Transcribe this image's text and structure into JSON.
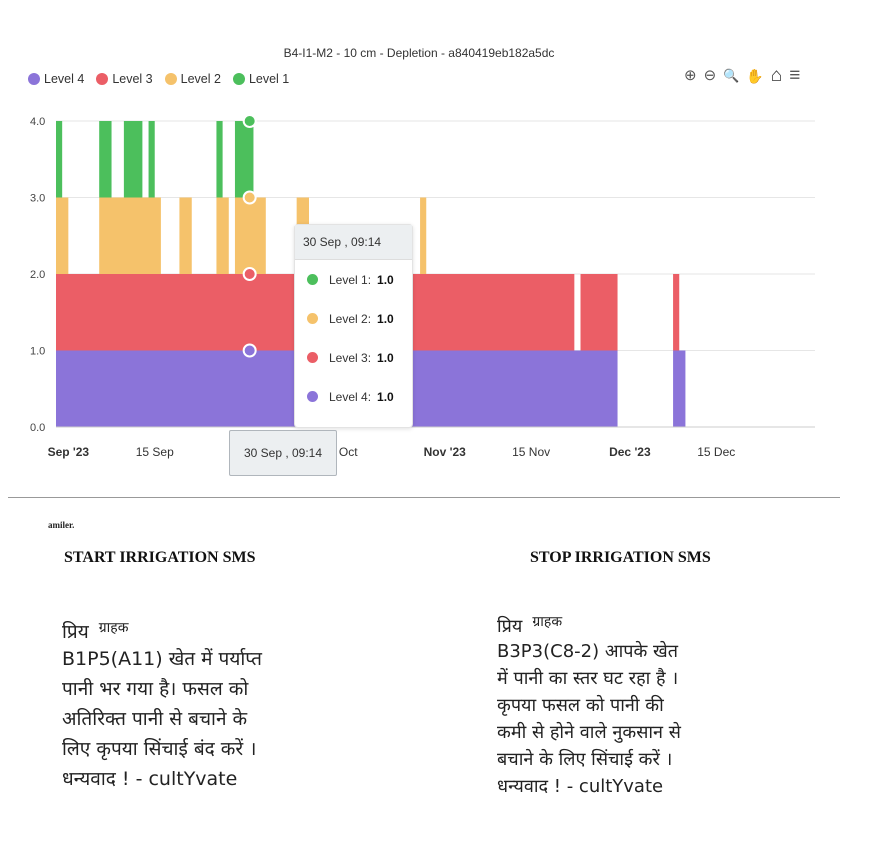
{
  "chart_data": {
    "type": "area",
    "title": "B4-I1-M2 - 10 cm - Depletion - a840419eb182a5dc",
    "y_ticks": [
      "4.0",
      "3.0",
      "2.0",
      "1.0",
      "0.0"
    ],
    "ylim": [
      0,
      4
    ],
    "x_ticks": [
      "Sep '23",
      "15 Sep",
      "30 Sep , 09:14",
      "15 Oct",
      "Nov '23",
      "15 Nov",
      "Dec '23",
      "15 Dec"
    ],
    "x_range": [
      "2023-08-30",
      "2023-12-31"
    ],
    "series": [
      {
        "name": "Level 4",
        "color": "#8b74d9",
        "segments": [
          {
            "from": "2023-08-30",
            "to": "2023-11-29",
            "value": 1
          },
          {
            "from": "2023-12-08",
            "to": "2023-12-10",
            "value": 1
          }
        ]
      },
      {
        "name": "Level 3",
        "color": "#eb5e66",
        "segments": [
          {
            "from": "2023-08-30",
            "to": "2023-11-22",
            "value": 1
          },
          {
            "from": "2023-11-23",
            "to": "2023-11-29",
            "value": 1
          },
          {
            "from": "2023-12-08",
            "to": "2023-12-09",
            "value": 1
          }
        ]
      },
      {
        "name": "Level 2",
        "color": "#f5c26b",
        "segments": [
          {
            "from": "2023-08-30",
            "to": "2023-09-01",
            "value": 1
          },
          {
            "from": "2023-09-06",
            "to": "2023-09-16",
            "value": 1
          },
          {
            "from": "2023-09-19",
            "to": "2023-09-21",
            "value": 1
          },
          {
            "from": "2023-09-25",
            "to": "2023-09-27",
            "value": 1
          },
          {
            "from": "2023-09-28",
            "to": "2023-10-03",
            "value": 1
          },
          {
            "from": "2023-10-08",
            "to": "2023-10-10",
            "value": 1
          },
          {
            "from": "2023-10-28",
            "to": "2023-10-29",
            "value": 1
          }
        ]
      },
      {
        "name": "Level 1",
        "color": "#4cbf5c",
        "segments": [
          {
            "from": "2023-08-30",
            "to": "2023-08-31",
            "value": 1
          },
          {
            "from": "2023-09-06",
            "to": "2023-09-08",
            "value": 1
          },
          {
            "from": "2023-09-10",
            "to": "2023-09-13",
            "value": 1
          },
          {
            "from": "2023-09-14",
            "to": "2023-09-15",
            "value": 1
          },
          {
            "from": "2023-09-25",
            "to": "2023-09-26",
            "value": 1
          },
          {
            "from": "2023-09-28",
            "to": "2023-10-01",
            "value": 1
          }
        ]
      }
    ],
    "stacked": true,
    "grid": true,
    "legend_position": "top-left",
    "tooltip": {
      "title": "30 Sep , 09:14",
      "at": "2023-09-30T09:14",
      "rows": [
        {
          "label": "Level 1:",
          "value": "1.0",
          "color": "#4cbf5c"
        },
        {
          "label": "Level 2:",
          "value": "1.0",
          "color": "#f5c26b"
        },
        {
          "label": "Level 3:",
          "value": "1.0",
          "color": "#eb5e66"
        },
        {
          "label": "Level 4:",
          "value": "1.0",
          "color": "#8b74d9"
        }
      ]
    }
  },
  "legend": [
    {
      "label": "Level 4",
      "color": "#8b74d9"
    },
    {
      "label": "Level 3",
      "color": "#eb5e66"
    },
    {
      "label": "Level 2",
      "color": "#f5c26b"
    },
    {
      "label": "Level 1",
      "color": "#4cbf5c"
    }
  ],
  "toolbar": {
    "zoom_in": "⊕",
    "zoom_out": "⊖",
    "zoom_select": "🔍",
    "pan": "✋",
    "home": "⌂",
    "menu": "≡"
  },
  "x_crosshair_label": "30 Sep , 09:14",
  "fragment_text": "amiler.",
  "start_sms": {
    "heading": "START IRRIGATION SMS",
    "greeting": "प्रिय",
    "recipient": "ग्राहक",
    "lines": [
      "B1P5(A11) खेत में पर्याप्त",
      "पानी भर गया है। फसल को",
      "अतिरिक्त पानी से बचाने के",
      "लिए कृपया सिंचाई बंद करें ।",
      "धन्यवाद ! - cultYvate"
    ]
  },
  "stop_sms": {
    "heading": "STOP IRRIGATION SMS",
    "greeting": "प्रिय",
    "recipient": "ग्राहक",
    "lines": [
      "B3P3(C8-2) आपके खेत",
      "में पानी का स्तर घट रहा है ।",
      "कृपया फसल को पानी की",
      "कमी से होने वाले नुकसान से",
      "बचाने के लिए सिंचाई करें ।",
      "धन्यवाद ! - cultYvate"
    ]
  }
}
